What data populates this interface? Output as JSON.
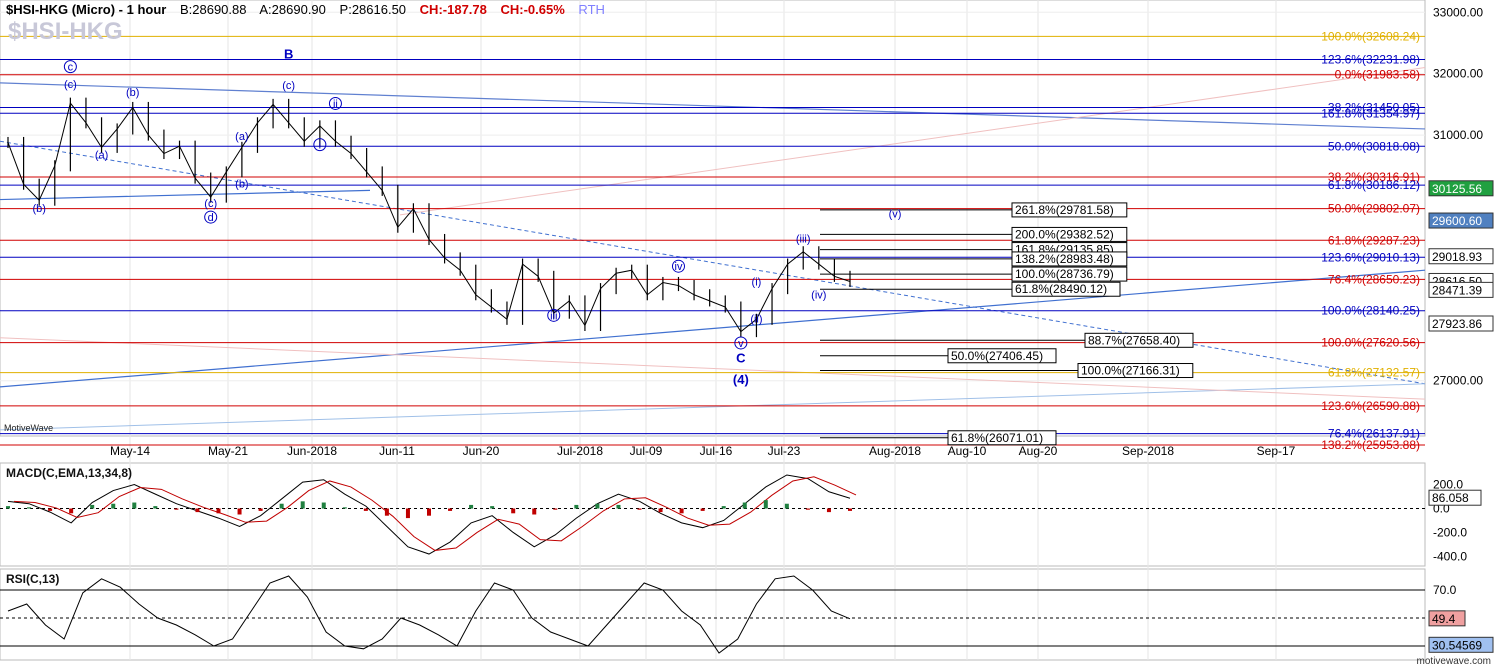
{
  "header": {
    "symbol": "$HSI-HKG (Micro) - 1 hour",
    "bid": "B:28690.88",
    "ask": "A:28690.90",
    "price": "P:28616.50",
    "change": "CH:-187.78",
    "change_pct": "CH:-0.65%",
    "session": "RTH",
    "watermark_symbol": "$HSI-HKG"
  },
  "brand": {
    "left": "MotiveWave",
    "right": "motivewave.com"
  },
  "colors": {
    "up": "#000000",
    "red": "#d00000",
    "blue": "#0000c0",
    "orange": "#e0a000",
    "grid": "#dddddd"
  },
  "chart_data": [
    {
      "type": "line",
      "title": "$HSI-HKG (Micro) - 1 hour",
      "price_axis": [
        "33000.00",
        "32000.00",
        "31000.00",
        "27000.00"
      ],
      "ylim": [
        26100,
        33200
      ],
      "time_labels": [
        "May-14",
        "May-21",
        "Jun-2018",
        "Jun-11",
        "Jun-20",
        "Jul-2018",
        "Jul-09",
        "Jul-16",
        "Jul-23",
        "Aug-2018",
        "Aug-10",
        "Aug-20",
        "Sep-2018",
        "Sep-17"
      ],
      "price_path": [
        [
          "May-07",
          30880
        ],
        [
          "May-09",
          30200
        ],
        [
          "May-10",
          29940
        ],
        [
          "May-11",
          30500
        ],
        [
          "May-14",
          31520
        ],
        [
          "May-15",
          31200
        ],
        [
          "May-16",
          30800
        ],
        [
          "May-17",
          31100
        ],
        [
          "May-18",
          31450
        ],
        [
          "May-21",
          31000
        ],
        [
          "May-23",
          30700
        ],
        [
          "May-25",
          30820
        ],
        [
          "May-28",
          30300
        ],
        [
          "May-29",
          29990
        ],
        [
          "May-30",
          30400
        ],
        [
          "Jun-01",
          30800
        ],
        [
          "Jun-04",
          31200
        ],
        [
          "Jun-06",
          31500
        ],
        [
          "Jun-07",
          31200
        ],
        [
          "Jun-08",
          30900
        ],
        [
          "Jun-11",
          31150
        ],
        [
          "Jun-12",
          30900
        ],
        [
          "Jun-13",
          30700
        ],
        [
          "Jun-14",
          30400
        ],
        [
          "Jun-15",
          30100
        ],
        [
          "Jun-19",
          29500
        ],
        [
          "Jun-20",
          29800
        ],
        [
          "Jun-21",
          29300
        ],
        [
          "Jun-22",
          29000
        ],
        [
          "Jun-25",
          28800
        ],
        [
          "Jun-26",
          28400
        ],
        [
          "Jun-27",
          28200
        ],
        [
          "Jun-28",
          28000
        ],
        [
          "Jun-29",
          28900
        ],
        [
          "Jul-02",
          28700
        ],
        [
          "Jul-03",
          28100
        ],
        [
          "Jul-04",
          28300
        ],
        [
          "Jul-05",
          27900
        ],
        [
          "Jul-06",
          28500
        ],
        [
          "Jul-09",
          28750
        ],
        [
          "Jul-10",
          28800
        ],
        [
          "Jul-11",
          28400
        ],
        [
          "Jul-12",
          28600
        ],
        [
          "Jul-13",
          28550
        ],
        [
          "Jul-16",
          28400
        ],
        [
          "Jul-17",
          28300
        ],
        [
          "Jul-18",
          28200
        ],
        [
          "Jul-19",
          27800
        ],
        [
          "Jul-20",
          28000
        ],
        [
          "Jul-23",
          28500
        ],
        [
          "Jul-24",
          28900
        ],
        [
          "Jul-25",
          29100
        ],
        [
          "Jul-26",
          28900
        ],
        [
          "Jul-27",
          28700
        ],
        [
          "Jul-27b",
          28616
        ]
      ],
      "time_axis": [
        "May-07",
        "May-09",
        "May-10",
        "May-11",
        "May-14",
        "May-15",
        "May-16",
        "May-17",
        "May-18",
        "May-21",
        "May-23",
        "May-25",
        "May-28",
        "May-29",
        "May-30",
        "Jun-01",
        "Jun-04",
        "Jun-06",
        "Jun-07",
        "Jun-08",
        "Jun-11",
        "Jun-12",
        "Jun-13",
        "Jun-14",
        "Jun-15",
        "Jun-19",
        "Jun-20",
        "Jun-21",
        "Jun-22",
        "Jun-25",
        "Jun-26",
        "Jun-27",
        "Jun-28",
        "Jun-29",
        "Jul-02",
        "Jul-03",
        "Jul-04",
        "Jul-05",
        "Jul-06",
        "Jul-09",
        "Jul-10",
        "Jul-11",
        "Jul-12",
        "Jul-13",
        "Jul-16",
        "Jul-17",
        "Jul-18",
        "Jul-19",
        "Jul-20",
        "Jul-23",
        "Jul-24",
        "Jul-25",
        "Jul-26",
        "Jul-27",
        "Jul-27b"
      ],
      "price_tags": [
        {
          "label": "30125.56",
          "price": 30125.56,
          "bg": "#20a040",
          "fg": "#ffffff"
        },
        {
          "label": "29600.60",
          "price": 29600.6,
          "bg": "#5080c0",
          "fg": "#ffffff"
        },
        {
          "label": "29018.93",
          "price": 29018.93,
          "bg": "#ffffff",
          "fg": "#000000"
        },
        {
          "label": "28616.50",
          "price": 28616.5,
          "bg": "#ffffff",
          "fg": "#000000"
        },
        {
          "label": "28471.39",
          "price": 28471.39,
          "bg": "#ffffff",
          "fg": "#000000"
        },
        {
          "label": "27923.86",
          "price": 27923.86,
          "bg": "#ffffff",
          "fg": "#000000"
        }
      ],
      "fib_levels": [
        {
          "label": "100.0%(32608.24)",
          "price": 32608.24,
          "color": "#e0b000"
        },
        {
          "label": "123.6%(32231.98)",
          "price": 32231.98,
          "color": "#0000c0"
        },
        {
          "label": "0.0%(31983.58)",
          "price": 31983.58,
          "color": "#d00000"
        },
        {
          "label": "38.2%(31450.05)",
          "price": 31450.05,
          "color": "#0000c0"
        },
        {
          "label": "161.8%(31354.97)",
          "price": 31354.97,
          "color": "#0000c0"
        },
        {
          "label": "50.0%(30818.08)",
          "price": 30818.08,
          "color": "#0000c0"
        },
        {
          "label": "38.2%(30316.91)",
          "price": 30316.91,
          "color": "#d00000"
        },
        {
          "label": "61.8%(30186.12)",
          "price": 30186.12,
          "color": "#0000c0"
        },
        {
          "label": "50.0%(29802.07)",
          "price": 29802.07,
          "color": "#d00000"
        },
        {
          "label": "61.8%(29287.23)",
          "price": 29287.23,
          "color": "#d00000"
        },
        {
          "label": "123.6%(29010.13)",
          "price": 29010.13,
          "color": "#0000c0"
        },
        {
          "label": "76.4%(28650.23)",
          "price": 28650.23,
          "color": "#d00000"
        },
        {
          "label": "100.0%(28140.25)",
          "price": 28140.25,
          "color": "#0000c0"
        },
        {
          "label": "100.0%(27620.56)",
          "price": 27620.56,
          "color": "#d00000"
        },
        {
          "label": "61.8%(27132.57)",
          "price": 27132.57,
          "color": "#e0b000"
        },
        {
          "label": "123.6%(26590.88)",
          "price": 26590.88,
          "color": "#d00000"
        },
        {
          "label": "76.4%(26137.91)",
          "price": 26137.91,
          "color": "#0000c0"
        },
        {
          "label": "138.2%(25953.88)",
          "price": 25953.88,
          "color": "#d00000"
        }
      ],
      "box_levels": [
        {
          "label": "261.8%(29781.58)",
          "price": 29781.58
        },
        {
          "label": "200.0%(29382.52)",
          "price": 29382.52
        },
        {
          "label": "161.8%(29135.85)",
          "price": 29135.85
        },
        {
          "label": "138.2%(28983.48)",
          "price": 28983.48
        },
        {
          "label": "100.0%(28736.79)",
          "price": 28736.79
        },
        {
          "label": "61.8%(28490.12)",
          "price": 28490.12
        },
        {
          "label": "88.7%(27658.40)",
          "price": 27658.4
        },
        {
          "label": "50.0%(27406.45)",
          "price": 27406.45
        },
        {
          "label": "100.0%(27166.31)",
          "price": 27166.31
        },
        {
          "label": "61.8%(26071.01)",
          "price": 26071.01
        }
      ],
      "wave_labels": [
        {
          "text": "B",
          "time": "Jun-07",
          "price": 32250,
          "bold": true
        },
        {
          "text": "(c)",
          "time": "Jun-07",
          "price": 31750
        },
        {
          "text": "c",
          "time": "May-14",
          "price": 32050,
          "circle": true
        },
        {
          "text": "(c)",
          "time": "May-14",
          "price": 31770
        },
        {
          "text": "(b)",
          "time": "May-18",
          "price": 31640
        },
        {
          "text": "(a)",
          "time": "May-16",
          "price": 30620
        },
        {
          "text": "(b)",
          "time": "May-10",
          "price": 29750
        },
        {
          "text": "(a)",
          "time": "Jun-01",
          "price": 30920
        },
        {
          "text": "(b)",
          "time": "Jun-01",
          "price": 30150
        },
        {
          "text": "(c)",
          "time": "May-29",
          "price": 29830
        },
        {
          "text": "d",
          "time": "May-29",
          "price": 29600,
          "circle": true
        },
        {
          "text": "ii",
          "time": "Jun-12",
          "price": 31450,
          "circle": true
        },
        {
          "text": "i",
          "time": "Jun-11",
          "price": 30780,
          "circle": true
        },
        {
          "text": "iii",
          "time": "Jul-03",
          "price": 28000,
          "circle": true
        },
        {
          "text": "iv",
          "time": "Jul-13",
          "price": 28800,
          "circle": true
        },
        {
          "text": "v",
          "time": "Jul-19",
          "price": 27550,
          "circle": true
        },
        {
          "text": "C",
          "time": "Jul-19",
          "price": 27300,
          "bold": true
        },
        {
          "text": "(4)",
          "time": "Jul-19",
          "price": 26950,
          "bold": true
        },
        {
          "text": "(i)",
          "time": "Jul-20",
          "price": 28550
        },
        {
          "text": "(ii)",
          "time": "Jul-20",
          "price": 27950
        },
        {
          "text": "(iii)",
          "time": "Jul-25",
          "price": 29250
        },
        {
          "text": "(iv)",
          "time": "Jul-26",
          "price": 28340
        },
        {
          "text": "(v)",
          "time": "Aug-01",
          "price": 29660
        }
      ]
    },
    {
      "type": "line",
      "title": "MACD(C,EMA,13,34,8)",
      "y_ticks": [
        "200.0",
        "0.0",
        "-200.0",
        "-400.0"
      ],
      "ylim": [
        -480,
        380
      ],
      "current": "86.058",
      "series": [
        {
          "name": "",
          "values": [
            60,
            40,
            -30,
            -120,
            50,
            150,
            200,
            120,
            40,
            -20,
            -80,
            -150,
            -60,
            80,
            220,
            240,
            120,
            20,
            -150,
            -320,
            -380,
            -280,
            -120,
            -60,
            -200,
            -320,
            -220,
            -80,
            40,
            120,
            60,
            -40,
            -120,
            -160,
            -100,
            40,
            180,
            280,
            250,
            140,
            86
          ]
        }
      ],
      "histogram": [
        20,
        10,
        -20,
        -40,
        30,
        40,
        50,
        20,
        -10,
        -30,
        -40,
        -50,
        -20,
        40,
        60,
        50,
        10,
        -20,
        -60,
        -80,
        -60,
        -20,
        30,
        20,
        -40,
        -50,
        -10,
        30,
        40,
        30,
        -10,
        -30,
        -40,
        -20,
        20,
        50,
        70,
        40,
        -10,
        -30,
        -20
      ]
    },
    {
      "type": "line",
      "title": "RSI(C,13)",
      "y_ticks": [
        "70.0",
        "30.0"
      ],
      "ylim": [
        20,
        85
      ],
      "current": "49.4",
      "ma": "30.54569",
      "values": [
        55,
        60,
        45,
        35,
        68,
        78,
        72,
        60,
        50,
        45,
        38,
        30,
        35,
        55,
        75,
        80,
        65,
        40,
        30,
        28,
        35,
        50,
        45,
        38,
        30,
        55,
        75,
        70,
        50,
        40,
        35,
        30,
        45,
        60,
        75,
        70,
        55,
        45,
        25,
        35,
        60,
        78,
        80,
        70,
        55,
        49.4
      ]
    }
  ]
}
